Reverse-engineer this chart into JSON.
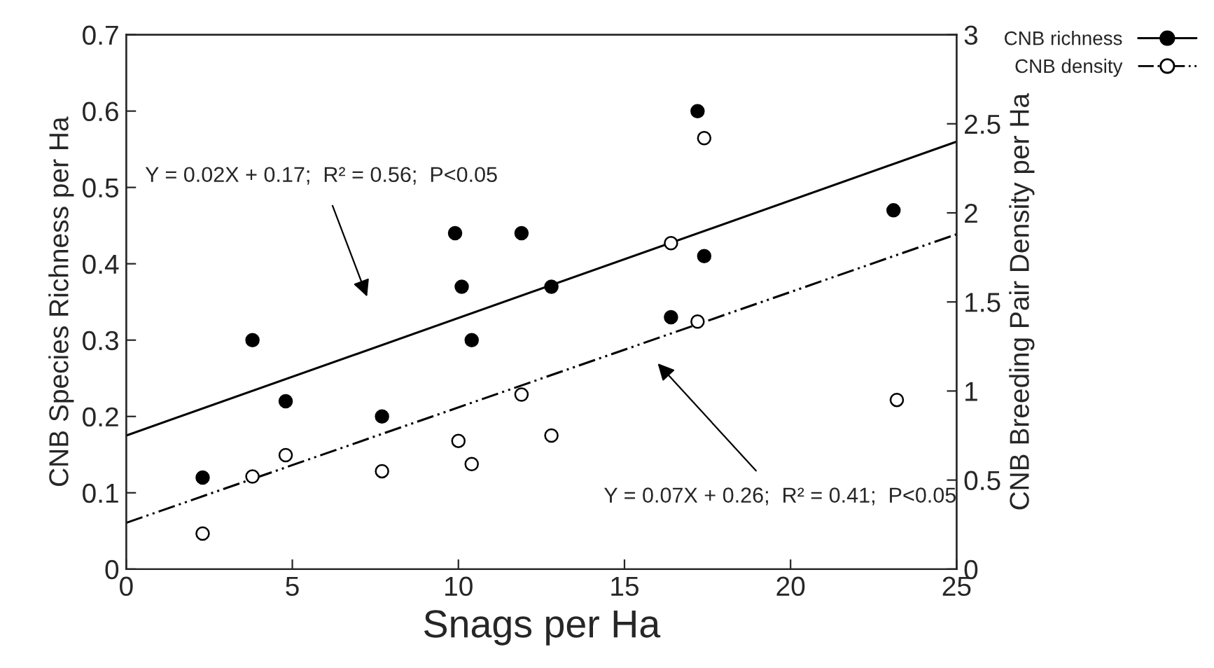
{
  "chart_data": {
    "type": "scatter",
    "xlabel": "Snags per Ha",
    "ylabel": "CNB Species Richness per Ha",
    "y2label": "CNB Breeding Pair Density per Ha",
    "xlim": [
      0,
      25
    ],
    "xticks": [
      0,
      5,
      10,
      15,
      20,
      25
    ],
    "ylim": [
      0,
      0.7
    ],
    "yticks": [
      0,
      0.1,
      0.2,
      0.3,
      0.4,
      0.5,
      0.6,
      0.7
    ],
    "y2lim": [
      0,
      3
    ],
    "y2ticks": [
      0,
      0.5,
      1,
      1.5,
      2,
      2.5,
      3
    ],
    "grid": false,
    "legend": "top right",
    "series": [
      {
        "name": "CNB richness",
        "marker": "circle",
        "color": "#000000",
        "line_style": "solid",
        "x": [
          2.3,
          3.8,
          4.8,
          7.7,
          9.9,
          10.1,
          10.4,
          11.9,
          12.8,
          16.4,
          17.2,
          17.4,
          23.1
        ],
        "values": [
          0.12,
          0.3,
          0.22,
          0.2,
          0.44,
          0.37,
          0.3,
          0.44,
          0.37,
          0.33,
          0.6,
          0.41,
          0.47
        ]
      },
      {
        "name": "CNB density",
        "marker": "circle",
        "axis": "y2",
        "color": "#000000",
        "line_style": "dashdot",
        "x": [
          2.3,
          3.8,
          4.8,
          7.7,
          10.0,
          10.4,
          11.9,
          12.8,
          16.4,
          17.2,
          17.4,
          23.2
        ],
        "values": [
          0.2,
          0.52,
          0.64,
          0.55,
          0.72,
          0.59,
          0.98,
          0.75,
          1.83,
          1.39,
          2.42,
          0.95
        ]
      },
      {
        "type": "line",
        "color": "#000000",
        "line_style": "solid",
        "x": [
          0,
          25
        ],
        "values": [
          0.175,
          0.56
        ]
      },
      {
        "type": "line",
        "axis": "y2",
        "color": "#000000",
        "line_style": "dashdot",
        "x": [
          0,
          25
        ],
        "values": [
          0.26,
          1.88
        ]
      }
    ],
    "annotations": [
      "Y = 0.02X + 0.17;  R² = 0.56;  P<0.05",
      "Y = 0.07X + 0.26;  R² = 0.41;  P<0.05"
    ]
  }
}
